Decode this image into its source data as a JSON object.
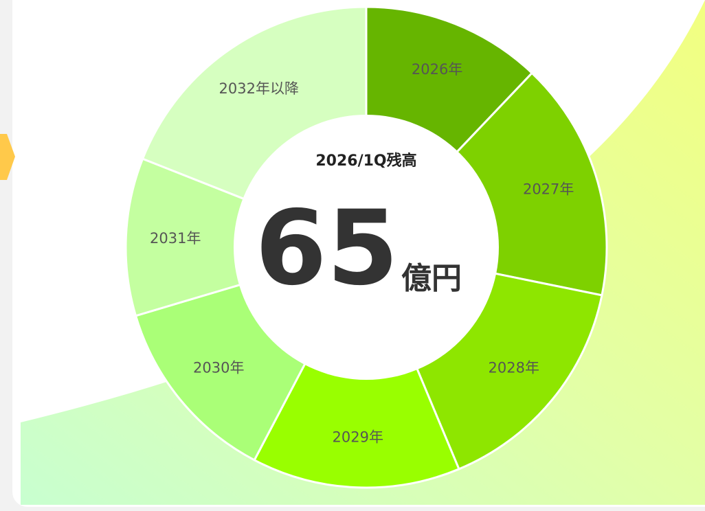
{
  "chart_data": {
    "type": "donut",
    "center_label": "2026/1Q残高",
    "total": 65,
    "total_unit": "億円",
    "categories": [
      "2026年",
      "2027年",
      "2028年",
      "2029年",
      "2030年",
      "2031年",
      "2032年以降"
    ],
    "values": [
      12.1,
      16.1,
      15.5,
      14,
      12.7,
      10.6,
      19
    ],
    "colors": [
      "#66b500",
      "#7ed100",
      "#8ee600",
      "#99ff00",
      "#aaff77",
      "#c4ffa0",
      "#d6ffc0"
    ]
  }
}
